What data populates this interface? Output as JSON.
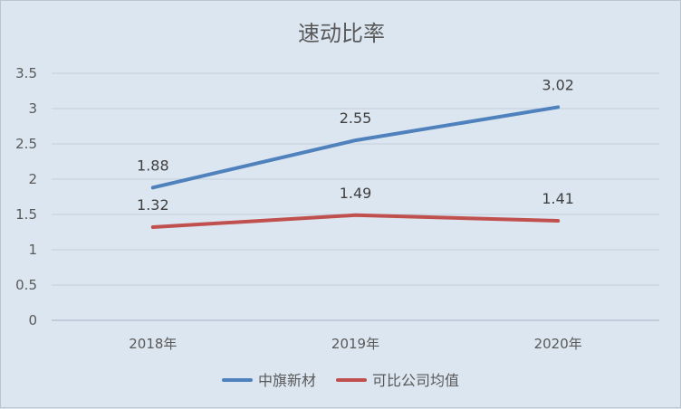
{
  "chart_data": {
    "type": "line",
    "title": "速动比率",
    "categories": [
      "2018年",
      "2019年",
      "2020年"
    ],
    "series": [
      {
        "name": "中旗新材",
        "values": [
          1.88,
          2.55,
          3.02
        ],
        "labels": [
          "1.88",
          "2.55",
          "3.02"
        ],
        "color": "#4f81bd"
      },
      {
        "name": "可比公司均值",
        "values": [
          1.32,
          1.49,
          1.41
        ],
        "labels": [
          "1.32",
          "1.49",
          "1.41"
        ],
        "color": "#c0504d"
      }
    ],
    "ylim": [
      0,
      3.5
    ],
    "yticks": [
      "0",
      "0.5",
      "1",
      "1.5",
      "2",
      "2.5",
      "3",
      "3.5"
    ],
    "grid": true,
    "legend": "bottom"
  }
}
